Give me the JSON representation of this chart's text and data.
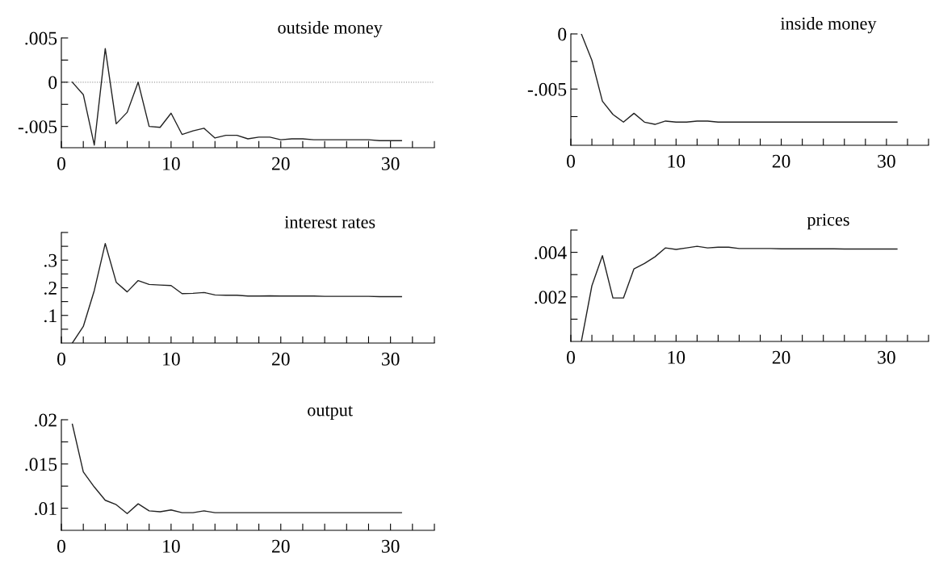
{
  "chart_data": [
    {
      "type": "line",
      "title": "outside money",
      "x": [
        1,
        2,
        3,
        4,
        5,
        6,
        7,
        8,
        9,
        10,
        11,
        12,
        13,
        14,
        15,
        16,
        17,
        18,
        19,
        20,
        21,
        22,
        23,
        24,
        25,
        26,
        27,
        28,
        29,
        30,
        31
      ],
      "values": [
        0,
        -0.0014,
        -0.0071,
        0.0038,
        -0.0047,
        -0.0034,
        0,
        -0.005,
        -0.0051,
        -0.0035,
        -0.0059,
        -0.0055,
        -0.0052,
        -0.0063,
        -0.006,
        -0.006,
        -0.0064,
        -0.0062,
        -0.0062,
        -0.0065,
        -0.0064,
        -0.0064,
        -0.0065,
        -0.0065,
        -0.0065,
        -0.0065,
        -0.0065,
        -0.0065,
        -0.0066,
        -0.0066,
        -0.0066
      ],
      "color": "#222222",
      "xlim": [
        0,
        34
      ],
      "ylim": [
        -0.0074,
        0.005
      ],
      "xticks": [
        0,
        {
          "value": 2,
          "label": null
        },
        {
          "value": 4,
          "label": null
        },
        {
          "value": 6,
          "label": null
        },
        {
          "value": 8,
          "label": null
        },
        10,
        {
          "value": 12,
          "label": null
        },
        {
          "value": 14,
          "label": null
        },
        {
          "value": 16,
          "label": null
        },
        {
          "value": 18,
          "label": null
        },
        20,
        {
          "value": 22,
          "label": null
        },
        {
          "value": 24,
          "label": null
        },
        {
          "value": 26,
          "label": null
        },
        {
          "value": 28,
          "label": null
        },
        30,
        {
          "value": 32,
          "label": null
        },
        {
          "value": 34,
          "label": null
        }
      ],
      "yticks": [
        {
          "value": -0.005,
          "label": "-.005"
        },
        {
          "value": -0.0025,
          "label": null
        },
        0,
        {
          "value": 0.0025,
          "label": null
        },
        {
          "value": 0.005,
          "label": ".005"
        }
      ],
      "ref_lines": [
        {
          "axis": "y",
          "value": 0,
          "color": "#999999",
          "line_style": "dotted"
        }
      ]
    },
    {
      "type": "line",
      "title": "inside money",
      "x": [
        1,
        2,
        3,
        4,
        5,
        6,
        7,
        8,
        9,
        10,
        11,
        12,
        13,
        14,
        15,
        16,
        17,
        18,
        19,
        20,
        21,
        22,
        23,
        24,
        25,
        26,
        27,
        28,
        29,
        30,
        31
      ],
      "values": [
        0,
        -0.0024,
        -0.0061,
        -0.0073,
        -0.008,
        -0.0072,
        -0.008,
        -0.0082,
        -0.0079,
        -0.008,
        -0.008,
        -0.0079,
        -0.0079,
        -0.008,
        -0.008,
        -0.008,
        -0.008,
        -0.008,
        -0.008,
        -0.008,
        -0.008,
        -0.008,
        -0.008,
        -0.008,
        -0.008,
        -0.008,
        -0.008,
        -0.008,
        -0.008,
        -0.008,
        -0.008
      ],
      "color": "#222222",
      "xlim": [
        0,
        34
      ],
      "ylim": [
        -0.0101,
        0
      ],
      "xticks": [
        0,
        {
          "value": 2,
          "label": null
        },
        {
          "value": 4,
          "label": null
        },
        {
          "value": 6,
          "label": null
        },
        {
          "value": 8,
          "label": null
        },
        10,
        {
          "value": 12,
          "label": null
        },
        {
          "value": 14,
          "label": null
        },
        {
          "value": 16,
          "label": null
        },
        {
          "value": 18,
          "label": null
        },
        20,
        {
          "value": 22,
          "label": null
        },
        {
          "value": 24,
          "label": null
        },
        {
          "value": 26,
          "label": null
        },
        {
          "value": 28,
          "label": null
        },
        30,
        {
          "value": 32,
          "label": null
        },
        {
          "value": 34,
          "label": null
        }
      ],
      "yticks": [
        {
          "value": -0.0075,
          "label": null
        },
        {
          "value": -0.005,
          "label": "-.005"
        },
        {
          "value": -0.0025,
          "label": null
        },
        0
      ]
    },
    {
      "type": "line",
      "title": "interest rates",
      "x": [
        1,
        2,
        3,
        4,
        5,
        6,
        7,
        8,
        9,
        10,
        11,
        12,
        13,
        14,
        15,
        16,
        17,
        18,
        19,
        20,
        21,
        22,
        23,
        24,
        25,
        26,
        27,
        28,
        29,
        30,
        31
      ],
      "values": [
        0,
        0.06,
        0.19,
        0.36,
        0.22,
        0.185,
        0.226,
        0.212,
        0.21,
        0.208,
        0.179,
        0.18,
        0.183,
        0.174,
        0.173,
        0.173,
        0.17,
        0.17,
        0.171,
        0.17,
        0.17,
        0.17,
        0.17,
        0.169,
        0.169,
        0.169,
        0.169,
        0.169,
        0.168,
        0.168,
        0.168
      ],
      "color": "#222222",
      "xlim": [
        0,
        34
      ],
      "ylim": [
        0,
        0.4
      ],
      "xticks": [
        0,
        {
          "value": 2,
          "label": null
        },
        {
          "value": 4,
          "label": null
        },
        {
          "value": 6,
          "label": null
        },
        {
          "value": 8,
          "label": null
        },
        10,
        {
          "value": 12,
          "label": null
        },
        {
          "value": 14,
          "label": null
        },
        {
          "value": 16,
          "label": null
        },
        {
          "value": 18,
          "label": null
        },
        20,
        {
          "value": 22,
          "label": null
        },
        {
          "value": 24,
          "label": null
        },
        {
          "value": 26,
          "label": null
        },
        {
          "value": 28,
          "label": null
        },
        30,
        {
          "value": 32,
          "label": null
        },
        {
          "value": 34,
          "label": null
        }
      ],
      "yticks": [
        {
          "value": 0.05,
          "label": null
        },
        {
          "value": 0.1,
          "label": ".1"
        },
        {
          "value": 0.15,
          "label": null
        },
        {
          "value": 0.2,
          "label": ".2"
        },
        {
          "value": 0.25,
          "label": null
        },
        {
          "value": 0.3,
          "label": ".3"
        },
        {
          "value": 0.35,
          "label": null
        },
        {
          "value": 0.4,
          "label": null
        }
      ]
    },
    {
      "type": "line",
      "title": "prices",
      "x": [
        1,
        2,
        3,
        4,
        5,
        6,
        7,
        8,
        9,
        10,
        11,
        12,
        13,
        14,
        15,
        16,
        17,
        18,
        19,
        20,
        21,
        22,
        23,
        24,
        25,
        26,
        27,
        28,
        29,
        30,
        31
      ],
      "values": [
        0,
        0.0025,
        0.00385,
        0.00195,
        0.00195,
        0.00326,
        0.0035,
        0.0038,
        0.0042,
        0.00413,
        0.0042,
        0.00427,
        0.0042,
        0.00423,
        0.00423,
        0.00417,
        0.00417,
        0.00417,
        0.00417,
        0.00416,
        0.00416,
        0.00416,
        0.00416,
        0.00416,
        0.00416,
        0.00415,
        0.00415,
        0.00415,
        0.00415,
        0.00415,
        0.00415
      ],
      "color": "#222222",
      "xlim": [
        0,
        34
      ],
      "ylim": [
        0,
        0.005
      ],
      "xticks": [
        0,
        {
          "value": 2,
          "label": null
        },
        {
          "value": 4,
          "label": null
        },
        {
          "value": 6,
          "label": null
        },
        {
          "value": 8,
          "label": null
        },
        10,
        {
          "value": 12,
          "label": null
        },
        {
          "value": 14,
          "label": null
        },
        {
          "value": 16,
          "label": null
        },
        {
          "value": 18,
          "label": null
        },
        20,
        {
          "value": 22,
          "label": null
        },
        {
          "value": 24,
          "label": null
        },
        {
          "value": 26,
          "label": null
        },
        {
          "value": 28,
          "label": null
        },
        30,
        {
          "value": 32,
          "label": null
        },
        {
          "value": 34,
          "label": null
        }
      ],
      "yticks": [
        {
          "value": 0.001,
          "label": null
        },
        {
          "value": 0.002,
          "label": ".002"
        },
        {
          "value": 0.003,
          "label": null
        },
        {
          "value": 0.004,
          "label": ".004"
        },
        {
          "value": 0.005,
          "label": null
        }
      ]
    },
    {
      "type": "line",
      "title": "output",
      "x": [
        1,
        2,
        3,
        4,
        5,
        6,
        7,
        8,
        9,
        10,
        11,
        12,
        13,
        14,
        15,
        16,
        17,
        18,
        19,
        20,
        21,
        22,
        23,
        24,
        25,
        26,
        27,
        28,
        29,
        30,
        31
      ],
      "values": [
        0.0195,
        0.0141,
        0.0124,
        0.0109,
        0.0104,
        0.0094,
        0.0105,
        0.0097,
        0.0096,
        0.0098,
        0.0095,
        0.0095,
        0.0097,
        0.0095,
        0.0095,
        0.0095,
        0.0095,
        0.0095,
        0.0095,
        0.0095,
        0.0095,
        0.0095,
        0.0095,
        0.0095,
        0.0095,
        0.0095,
        0.0095,
        0.0095,
        0.0095,
        0.0095,
        0.0095
      ],
      "color": "#222222",
      "xlim": [
        0,
        34
      ],
      "ylim": [
        0.0075,
        0.02
      ],
      "xticks": [
        0,
        {
          "value": 2,
          "label": null
        },
        {
          "value": 4,
          "label": null
        },
        {
          "value": 6,
          "label": null
        },
        {
          "value": 8,
          "label": null
        },
        10,
        {
          "value": 12,
          "label": null
        },
        {
          "value": 14,
          "label": null
        },
        {
          "value": 16,
          "label": null
        },
        {
          "value": 18,
          "label": null
        },
        20,
        {
          "value": 22,
          "label": null
        },
        {
          "value": 24,
          "label": null
        },
        {
          "value": 26,
          "label": null
        },
        {
          "value": 28,
          "label": null
        },
        30,
        {
          "value": 32,
          "label": null
        },
        {
          "value": 34,
          "label": null
        }
      ],
      "yticks": [
        {
          "value": 0.01,
          "label": ".01"
        },
        {
          "value": 0.0125,
          "label": null
        },
        {
          "value": 0.015,
          "label": ".015"
        },
        {
          "value": 0.0175,
          "label": null
        },
        {
          "value": 0.02,
          "label": ".02"
        }
      ]
    }
  ]
}
